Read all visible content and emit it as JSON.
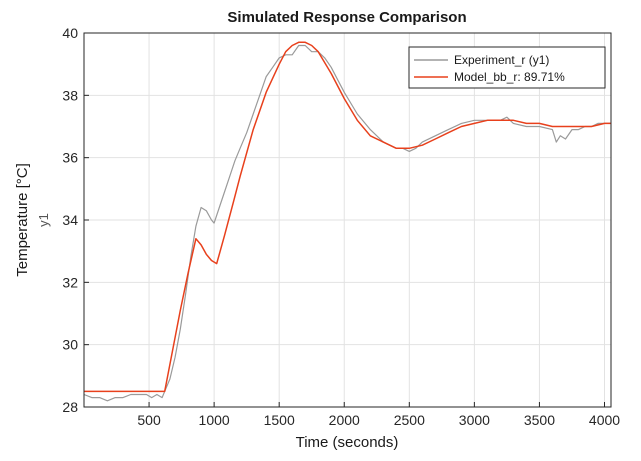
{
  "chart_data": {
    "type": "line",
    "title": "Simulated Response Comparison",
    "xlabel": "Time (seconds)",
    "ylabel": "Temperature [°C]",
    "ylabel_secondary": "y1",
    "xlim": [
      0,
      4050
    ],
    "ylim": [
      28,
      40
    ],
    "xticks": [
      500,
      1000,
      1500,
      2000,
      2500,
      3000,
      3500,
      4000
    ],
    "yticks": [
      28,
      30,
      32,
      34,
      36,
      38,
      40
    ],
    "grid": true,
    "legend_position": "top-right",
    "series": [
      {
        "name": "Experiment_r (y1)",
        "color": "#9a9a9a",
        "x": [
          0,
          60,
          120,
          180,
          240,
          300,
          360,
          420,
          480,
          520,
          560,
          600,
          630,
          660,
          700,
          740,
          780,
          820,
          860,
          900,
          940,
          980,
          1000,
          1040,
          1080,
          1120,
          1160,
          1200,
          1250,
          1300,
          1350,
          1400,
          1450,
          1500,
          1550,
          1600,
          1650,
          1700,
          1750,
          1800,
          1850,
          1900,
          1950,
          2000,
          2100,
          2200,
          2300,
          2400,
          2450,
          2500,
          2550,
          2600,
          2700,
          2800,
          2900,
          3000,
          3100,
          3200,
          3250,
          3300,
          3400,
          3500,
          3600,
          3630,
          3660,
          3700,
          3750,
          3800,
          3850,
          3900,
          3950,
          4000,
          4050
        ],
        "values": [
          28.4,
          28.3,
          28.3,
          28.2,
          28.3,
          28.3,
          28.4,
          28.4,
          28.4,
          28.3,
          28.4,
          28.3,
          28.6,
          28.9,
          29.6,
          30.5,
          31.6,
          32.8,
          33.8,
          34.4,
          34.3,
          34.0,
          33.9,
          34.4,
          34.9,
          35.4,
          35.9,
          36.3,
          36.8,
          37.4,
          38.0,
          38.6,
          38.9,
          39.2,
          39.3,
          39.3,
          39.6,
          39.6,
          39.4,
          39.4,
          39.2,
          38.9,
          38.5,
          38.1,
          37.4,
          36.9,
          36.5,
          36.3,
          36.3,
          36.2,
          36.3,
          36.5,
          36.7,
          36.9,
          37.1,
          37.2,
          37.2,
          37.2,
          37.3,
          37.1,
          37.0,
          37.0,
          36.9,
          36.5,
          36.7,
          36.6,
          36.9,
          36.9,
          37.0,
          37.0,
          37.1,
          37.1,
          37.1
        ]
      },
      {
        "name": "Model_bb_r: 89.71%",
        "color": "#e8401c",
        "x": [
          0,
          100,
          200,
          300,
          400,
          500,
          600,
          620,
          680,
          740,
          800,
          860,
          900,
          940,
          980,
          1020,
          1080,
          1150,
          1200,
          1300,
          1400,
          1500,
          1550,
          1600,
          1650,
          1700,
          1750,
          1800,
          1900,
          2000,
          2100,
          2200,
          2300,
          2400,
          2500,
          2600,
          2700,
          2800,
          2900,
          3000,
          3100,
          3200,
          3300,
          3400,
          3500,
          3600,
          3700,
          3800,
          3900,
          4000,
          4050
        ],
        "values": [
          28.5,
          28.5,
          28.5,
          28.5,
          28.5,
          28.5,
          28.5,
          28.5,
          29.8,
          31.1,
          32.3,
          33.4,
          33.2,
          32.9,
          32.7,
          32.6,
          33.5,
          34.6,
          35.4,
          36.9,
          38.1,
          39.0,
          39.4,
          39.6,
          39.7,
          39.7,
          39.6,
          39.4,
          38.7,
          37.9,
          37.2,
          36.7,
          36.5,
          36.3,
          36.3,
          36.4,
          36.6,
          36.8,
          37.0,
          37.1,
          37.2,
          37.2,
          37.2,
          37.1,
          37.1,
          37.0,
          37.0,
          37.0,
          37.0,
          37.1,
          37.1
        ]
      }
    ]
  }
}
